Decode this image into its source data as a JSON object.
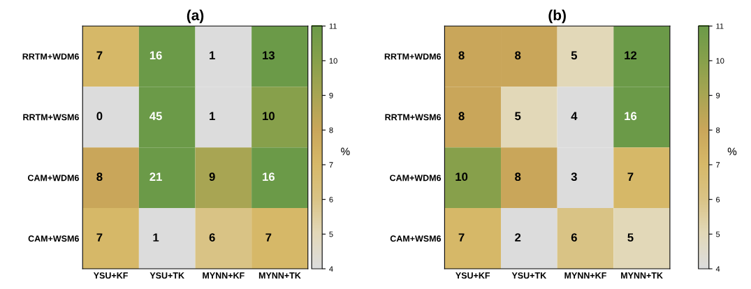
{
  "chart_data": [
    {
      "type": "heatmap",
      "title": "(a)",
      "categories": [
        "YSU+KF",
        "YSU+TK",
        "MYNN+KF",
        "MYNN+TK"
      ],
      "y_categories": [
        "RRTM+WDM6",
        "RRTM+WSM6",
        "CAM+WDM6",
        "CAM+WSM6"
      ],
      "cells": [
        [
          7,
          16,
          1,
          13
        ],
        [
          0,
          45,
          1,
          10
        ],
        [
          8,
          21,
          9,
          16
        ],
        [
          7,
          1,
          6,
          7
        ]
      ],
      "clim": [
        4,
        11
      ],
      "cticks": [
        4,
        5,
        6,
        7,
        8,
        9,
        10,
        11
      ],
      "clabel": "%",
      "data_labels": true
    },
    {
      "type": "heatmap",
      "title": "(b)",
      "categories": [
        "YSU+KF",
        "YSU+TK",
        "MYNN+KF",
        "MYNN+TK"
      ],
      "y_categories": [
        "RRTM+WDM6",
        "RRTM+WSM6",
        "CAM+WDM6",
        "CAM+WSM6"
      ],
      "cells": [
        [
          8,
          8,
          5,
          12
        ],
        [
          8,
          5,
          4,
          16
        ],
        [
          10,
          8,
          3,
          7
        ],
        [
          7,
          2,
          6,
          5
        ]
      ],
      "clim": [
        4,
        11
      ],
      "cticks": [
        4,
        5,
        6,
        7,
        8,
        9,
        10,
        11
      ],
      "clabel": "%",
      "data_labels": true
    }
  ]
}
